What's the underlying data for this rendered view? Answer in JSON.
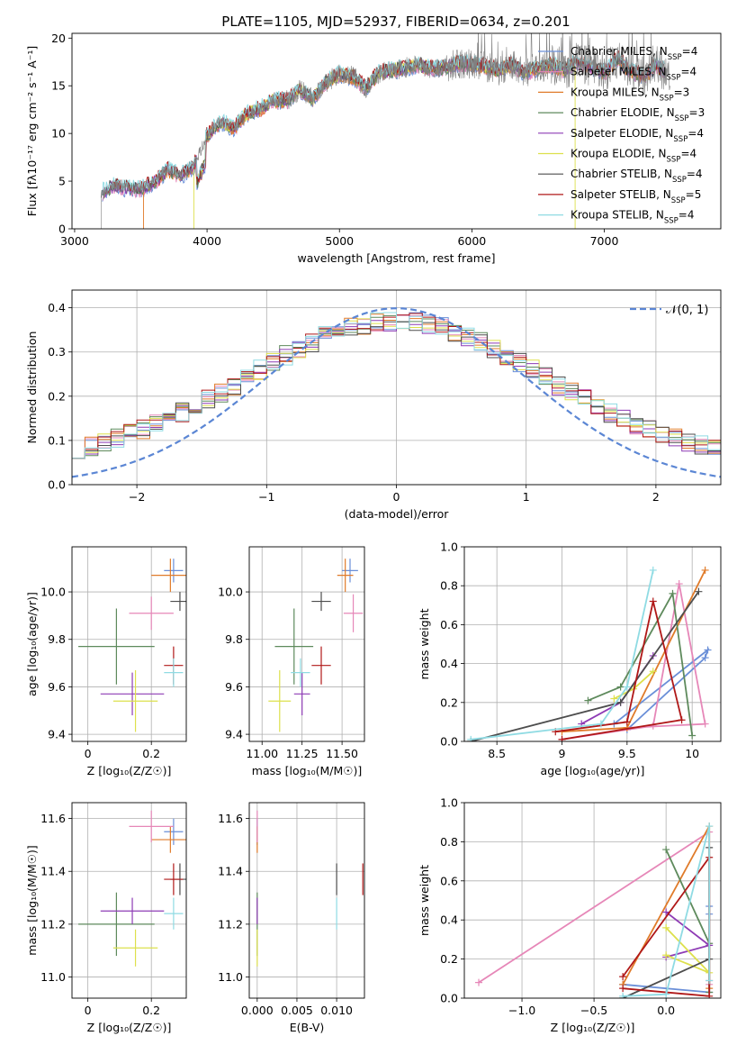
{
  "chart_data": [
    {
      "id": "spectrum",
      "type": "line",
      "title": "PLATE=1105, MJD=52937, FIBERID=0634, z=0.201",
      "xlabel": "wavelength [Angstrom, rest frame]",
      "ylabel": "Flux [fλ10⁻¹⁷ erg cm⁻² s⁻¹ A⁻¹]",
      "xlim": [
        2980,
        7880
      ],
      "ylim": [
        0,
        20.5
      ],
      "xticks": [
        3000,
        4000,
        5000,
        6000,
        7000
      ],
      "yticks": [
        0,
        5,
        10,
        15,
        20
      ],
      "grid": false,
      "legend_position": "right",
      "data_series": {
        "name": "",
        "color": "#808080",
        "x": [
          3200,
          3300,
          3400,
          3500,
          3600,
          3700,
          3800,
          3900,
          4000,
          4100,
          4200,
          4300,
          4400,
          4500,
          4600,
          4700,
          4800,
          4900,
          5000,
          5100,
          5200,
          5300,
          5400,
          5500,
          5600,
          5700,
          5800,
          5900,
          6000,
          6100,
          6200,
          6300,
          6400,
          6500,
          6600,
          6700,
          6800,
          6900,
          7000,
          7100,
          7200,
          7300,
          7400,
          7500
        ],
        "y": [
          3.8,
          4.5,
          4.3,
          4.2,
          4.8,
          6.2,
          5.6,
          6.6,
          9.8,
          11.2,
          10.6,
          12.0,
          12.6,
          13.5,
          13.4,
          14.6,
          13.6,
          15.4,
          16.2,
          16.0,
          14.8,
          16.4,
          16.6,
          16.9,
          17.2,
          16.8,
          16.9,
          17.4,
          17.2,
          17.0,
          16.6,
          17.2,
          16.4,
          16.9,
          17.2,
          16.6,
          17.6,
          17.0,
          16.4,
          17.8,
          16.6,
          16.0,
          17.2,
          15.8
        ]
      },
      "series": [
        {
          "name": "Chabrier MILES, N_SSP=4",
          "color": "#6a8fd8"
        },
        {
          "name": "Salpeter MILES, N_SSP=4",
          "color": "#e687b8"
        },
        {
          "name": "Kroupa MILES, N_SSP=3",
          "color": "#e07b2a"
        },
        {
          "name": "Chabrier ELODIE, N_SSP=3",
          "color": "#5e8a5c"
        },
        {
          "name": "Salpeter ELODIE, N_SSP=4",
          "color": "#8e3bb5"
        },
        {
          "name": "Kroupa ELODIE, N_SSP=4",
          "color": "#dde04c"
        },
        {
          "name": "Chabrier STELIB, N_SSP=4",
          "color": "#4d4d4d"
        },
        {
          "name": "Salpeter STELIB, N_SSP=5",
          "color": "#b01818"
        },
        {
          "name": "Kroupa STELIB, N_SSP=4",
          "color": "#8fdbe3"
        }
      ]
    },
    {
      "id": "residuals",
      "type": "line",
      "title": "",
      "xlabel": "(data-model)/error",
      "ylabel": "Normed distribution",
      "xlim": [
        -2.5,
        2.5
      ],
      "ylim": [
        0,
        0.44
      ],
      "xticks": [
        -2,
        -1,
        0,
        1,
        2
      ],
      "yticks": [
        0.0,
        0.1,
        0.2,
        0.3,
        0.4
      ],
      "grid": true,
      "legend_position": "top-right",
      "legend_label": "𝒩(0, 1)",
      "gaussian": {
        "mean": 0,
        "sigma": 1,
        "color": "#5b86d4"
      },
      "hist_bin_width": 0.1,
      "hist_range": [
        -2.5,
        2.5
      ]
    },
    {
      "id": "age_vs_Z",
      "type": "scatter",
      "xlabel": "Z [log₁₀(Z/Z☉)]",
      "ylabel": "age  [log₁₀(age/yr)]",
      "xlim": [
        -0.05,
        0.31
      ],
      "ylim": [
        9.37,
        10.19
      ],
      "xticks": [
        0.0,
        0.2
      ],
      "yticks": [
        9.4,
        9.6,
        9.8,
        10.0
      ],
      "grid": true,
      "points": [
        {
          "color": "#6a8fd8",
          "x": 0.27,
          "xerr": 0.03,
          "y": 10.09,
          "yerr": 0.05
        },
        {
          "color": "#e07b2a",
          "x": 0.26,
          "xerr": 0.06,
          "y": 10.07,
          "yerr": 0.07
        },
        {
          "color": "#e687b8",
          "x": 0.2,
          "xerr": 0.07,
          "y": 9.91,
          "yerr": 0.07
        },
        {
          "color": "#4d4d4d",
          "x": 0.29,
          "xerr": 0.03,
          "y": 9.96,
          "yerr": 0.04
        },
        {
          "color": "#5e8a5c",
          "x": 0.09,
          "xerr": 0.12,
          "y": 9.77,
          "yerr": 0.16
        },
        {
          "color": "#8e3bb5",
          "x": 0.14,
          "xerr": 0.1,
          "y": 9.57,
          "yerr": 0.09
        },
        {
          "color": "#dde04c",
          "x": 0.15,
          "xerr": 0.07,
          "y": 9.54,
          "yerr": 0.13
        },
        {
          "color": "#b01818",
          "x": 0.27,
          "xerr": 0.03,
          "y": 9.69,
          "yerr": 0.08
        },
        {
          "color": "#8fdbe3",
          "x": 0.27,
          "xerr": 0.03,
          "y": 9.66,
          "yerr": 0.06
        }
      ]
    },
    {
      "id": "age_vs_mass",
      "type": "scatter",
      "xlabel": "mass [log₁₀(M/M☉)]",
      "ylabel": "",
      "xlim": [
        10.92,
        11.64
      ],
      "ylim": [
        9.37,
        10.19
      ],
      "xticks": [
        11.0,
        11.25,
        11.5
      ],
      "xtick_labels": [
        "11.00",
        "11.25",
        "11.50"
      ],
      "yticks": [
        9.4,
        9.6,
        9.8,
        10.0
      ],
      "grid": true,
      "points": [
        {
          "color": "#6a8fd8",
          "x": 11.55,
          "xerr": 0.05,
          "y": 10.09,
          "yerr": 0.05
        },
        {
          "color": "#e07b2a",
          "x": 11.52,
          "xerr": 0.05,
          "y": 10.07,
          "yerr": 0.07
        },
        {
          "color": "#e687b8",
          "x": 11.57,
          "xerr": 0.06,
          "y": 9.91,
          "yerr": 0.08
        },
        {
          "color": "#4d4d4d",
          "x": 11.37,
          "xerr": 0.06,
          "y": 9.96,
          "yerr": 0.04
        },
        {
          "color": "#5e8a5c",
          "x": 11.2,
          "xerr": 0.12,
          "y": 9.77,
          "yerr": 0.16
        },
        {
          "color": "#8e3bb5",
          "x": 11.25,
          "xerr": 0.05,
          "y": 9.57,
          "yerr": 0.09
        },
        {
          "color": "#dde04c",
          "x": 11.11,
          "xerr": 0.07,
          "y": 9.54,
          "yerr": 0.13
        },
        {
          "color": "#b01818",
          "x": 11.37,
          "xerr": 0.06,
          "y": 9.69,
          "yerr": 0.08
        },
        {
          "color": "#8fdbe3",
          "x": 11.24,
          "xerr": 0.06,
          "y": 9.66,
          "yerr": 0.06
        }
      ]
    },
    {
      "id": "weight_vs_age",
      "type": "line",
      "xlabel": "age  [log₁₀(age/yr)]",
      "ylabel": "mass weight",
      "xlim": [
        8.25,
        10.22
      ],
      "ylim": [
        0,
        1.0
      ],
      "xticks": [
        8.5,
        9.0,
        9.5,
        10.0
      ],
      "yticks": [
        0.0,
        0.2,
        0.4,
        0.6,
        0.8,
        1.0
      ],
      "grid": true,
      "series": [
        {
          "color": "#6a8fd8",
          "x": [
            9.5,
            10.1,
            10.12,
            9.4
          ],
          "y": [
            0.06,
            0.43,
            0.47,
            0.09
          ]
        },
        {
          "color": "#e687b8",
          "x": [
            9.0,
            9.7,
            9.9,
            10.1,
            9.5
          ],
          "y": [
            0.01,
            0.08,
            0.81,
            0.09,
            0.07
          ]
        },
        {
          "color": "#e07b2a",
          "x": [
            9.0,
            9.5,
            10.1
          ],
          "y": [
            0.05,
            0.07,
            0.88
          ]
        },
        {
          "color": "#5e8a5c",
          "x": [
            9.2,
            9.45,
            9.85,
            10.0
          ],
          "y": [
            0.21,
            0.28,
            0.76,
            0.03
          ]
        },
        {
          "color": "#8e3bb5",
          "x": [
            9.15,
            9.45,
            9.7
          ],
          "y": [
            0.09,
            0.2,
            0.44
          ]
        },
        {
          "color": "#dde04c",
          "x": [
            9.4,
            9.55,
            9.7
          ],
          "y": [
            0.22,
            0.27,
            0.36
          ]
        },
        {
          "color": "#4d4d4d",
          "x": [
            8.3,
            9.45,
            10.05
          ],
          "y": [
            0.0,
            0.2,
            0.77
          ]
        },
        {
          "color": "#b01818",
          "x": [
            8.95,
            9.5,
            9.7,
            9.92,
            9.0
          ],
          "y": [
            0.05,
            0.1,
            0.72,
            0.11,
            0.01
          ]
        },
        {
          "color": "#8fdbe3",
          "x": [
            8.3,
            9.3,
            9.5,
            9.7
          ],
          "y": [
            0.01,
            0.09,
            0.28,
            0.88
          ]
        }
      ]
    },
    {
      "id": "mass_vs_Z",
      "type": "scatter",
      "xlabel": "Z [log₁₀(Z/Z☉)]",
      "ylabel": "mass [log₁₀(M/M☉)]",
      "xlim": [
        -0.05,
        0.31
      ],
      "ylim": [
        10.92,
        11.66
      ],
      "xticks": [
        0.0,
        0.2
      ],
      "yticks": [
        11.0,
        11.2,
        11.4,
        11.6
      ],
      "grid": true,
      "points": [
        {
          "color": "#6a8fd8",
          "x": 0.27,
          "xerr": 0.03,
          "y": 11.55,
          "yerr": 0.05
        },
        {
          "color": "#e07b2a",
          "x": 0.26,
          "xerr": 0.06,
          "y": 11.52,
          "yerr": 0.05
        },
        {
          "color": "#e687b8",
          "x": 0.2,
          "xerr": 0.07,
          "y": 11.57,
          "yerr": 0.06
        },
        {
          "color": "#4d4d4d",
          "x": 0.29,
          "xerr": 0.03,
          "y": 11.37,
          "yerr": 0.06
        },
        {
          "color": "#5e8a5c",
          "x": 0.09,
          "xerr": 0.12,
          "y": 11.2,
          "yerr": 0.12
        },
        {
          "color": "#8e3bb5",
          "x": 0.14,
          "xerr": 0.1,
          "y": 11.25,
          "yerr": 0.05
        },
        {
          "color": "#dde04c",
          "x": 0.15,
          "xerr": 0.07,
          "y": 11.11,
          "yerr": 0.07
        },
        {
          "color": "#b01818",
          "x": 0.27,
          "xerr": 0.03,
          "y": 11.37,
          "yerr": 0.06
        },
        {
          "color": "#8fdbe3",
          "x": 0.27,
          "xerr": 0.03,
          "y": 11.24,
          "yerr": 0.06
        }
      ]
    },
    {
      "id": "mass_vs_ebv",
      "type": "scatter",
      "xlabel": "E(B-V)",
      "ylabel": "",
      "xlim": [
        -0.001,
        0.0135
      ],
      "ylim": [
        10.92,
        11.66
      ],
      "xticks": [
        0.0,
        0.005,
        0.01
      ],
      "xtick_labels": [
        "0.000",
        "0.005",
        "0.010"
      ],
      "yticks": [
        11.0,
        11.2,
        11.4,
        11.6
      ],
      "grid": true,
      "points": [
        {
          "color": "#6a8fd8",
          "x": 0.0,
          "xerr": 0,
          "y": 11.55,
          "yerr": 0.05
        },
        {
          "color": "#e07b2a",
          "x": 0.0,
          "xerr": 0,
          "y": 11.52,
          "yerr": 0.05
        },
        {
          "color": "#e687b8",
          "x": 0.0,
          "xerr": 0,
          "y": 11.57,
          "yerr": 0.06
        },
        {
          "color": "#4d4d4d",
          "x": 0.01,
          "xerr": 0,
          "y": 11.37,
          "yerr": 0.06
        },
        {
          "color": "#5e8a5c",
          "x": 0.0,
          "xerr": 0,
          "y": 11.2,
          "yerr": 0.12
        },
        {
          "color": "#8e3bb5",
          "x": 0.0,
          "xerr": 0,
          "y": 11.25,
          "yerr": 0.05
        },
        {
          "color": "#dde04c",
          "x": 0.0,
          "xerr": 0,
          "y": 11.11,
          "yerr": 0.07
        },
        {
          "color": "#b01818",
          "x": 0.0133,
          "xerr": 0,
          "y": 11.37,
          "yerr": 0.06
        },
        {
          "color": "#8fdbe3",
          "x": 0.01,
          "xerr": 0,
          "y": 11.24,
          "yerr": 0.06
        }
      ]
    },
    {
      "id": "weight_vs_Z",
      "type": "line",
      "xlabel": "Z [log₁₀(Z/Z☉)]",
      "ylabel": "mass weight",
      "xlim": [
        -1.4,
        0.38
      ],
      "ylim": [
        0,
        1.0
      ],
      "xticks": [
        -1.0,
        -0.5,
        0.0
      ],
      "xtick_labels": [
        "−1.0",
        "−0.5",
        "0.0"
      ],
      "yticks": [
        0.0,
        0.2,
        0.4,
        0.6,
        0.8,
        1.0
      ],
      "grid": true,
      "series": [
        {
          "color": "#6a8fd8",
          "x": [
            -0.3,
            0.3,
            0.3,
            0.3
          ],
          "y": [
            0.07,
            0.03,
            0.43,
            0.47
          ]
        },
        {
          "color": "#e687b8",
          "x": [
            -1.3,
            0.3,
            0.3,
            0.3
          ],
          "y": [
            0.08,
            0.85,
            0.09,
            0.07
          ]
        },
        {
          "color": "#e07b2a",
          "x": [
            -0.3,
            0.3,
            0.3
          ],
          "y": [
            0.07,
            0.88,
            0.05
          ]
        },
        {
          "color": "#5e8a5c",
          "x": [
            0.0,
            0.3,
            0.3
          ],
          "y": [
            0.76,
            0.28,
            0.03
          ]
        },
        {
          "color": "#8e3bb5",
          "x": [
            0.0,
            0.3,
            0.0
          ],
          "y": [
            0.21,
            0.27,
            0.44
          ]
        },
        {
          "color": "#dde04c",
          "x": [
            0.0,
            0.3,
            0.0
          ],
          "y": [
            0.36,
            0.13,
            0.22
          ]
        },
        {
          "color": "#4d4d4d",
          "x": [
            -0.3,
            0.3,
            0.3
          ],
          "y": [
            0.0,
            0.2,
            0.77
          ]
        },
        {
          "color": "#b01818",
          "x": [
            -0.3,
            0.3,
            0.3,
            -0.3
          ],
          "y": [
            0.11,
            0.72,
            0.01,
            0.05
          ]
        },
        {
          "color": "#8fdbe3",
          "x": [
            -0.3,
            0.0,
            0.3,
            0.3
          ],
          "y": [
            0.01,
            0.02,
            0.88,
            0.09
          ]
        }
      ]
    }
  ]
}
